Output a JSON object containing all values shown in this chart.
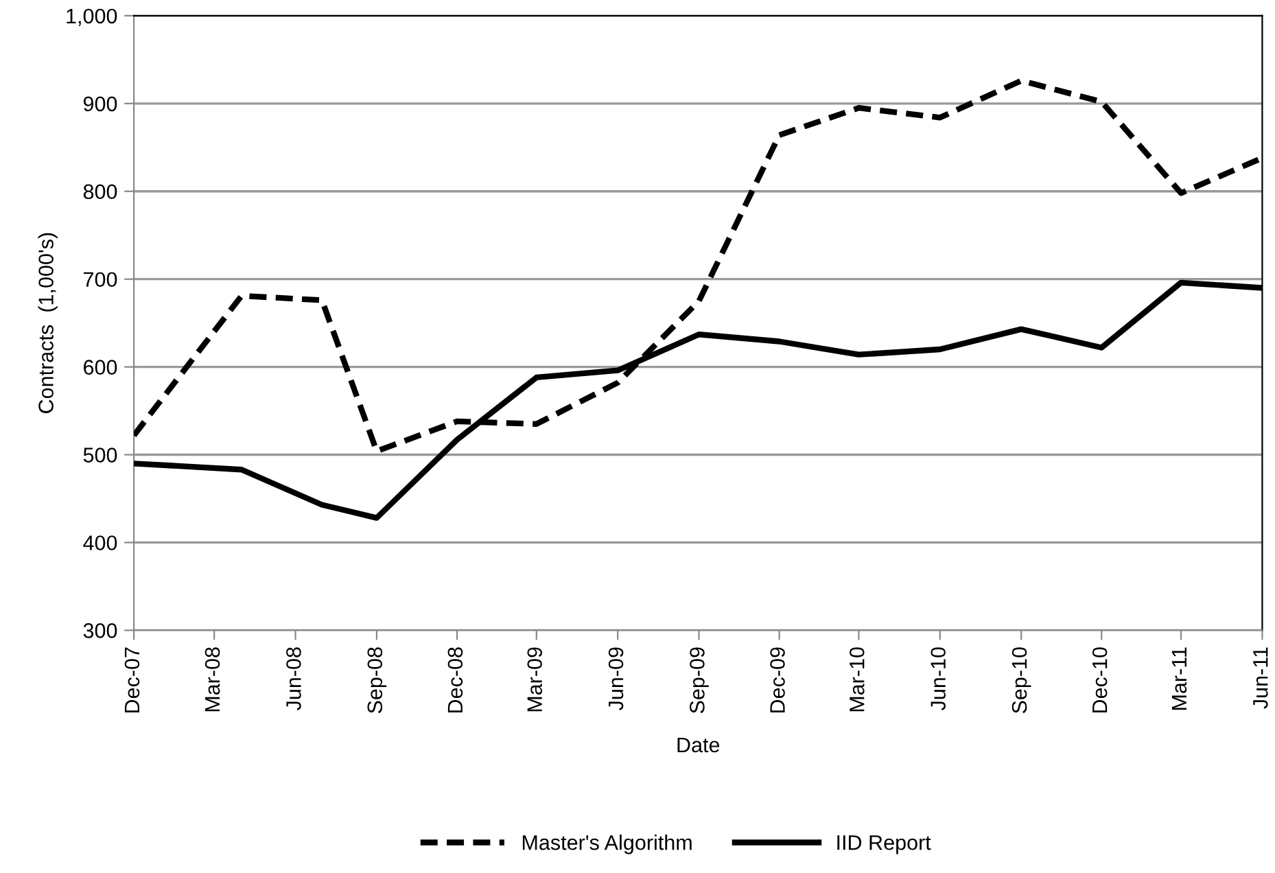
{
  "chart_data": {
    "type": "line",
    "xlabel": "Date",
    "ylabel": "Contracts  (1,000's)",
    "x": [
      "2007-12",
      "2008-04",
      "2008-07",
      "2008-09",
      "2008-12",
      "2009-03",
      "2009-06",
      "2009-09",
      "2009-12",
      "2010-03",
      "2010-06",
      "2010-09",
      "2010-12",
      "2011-03",
      "2011-06"
    ],
    "series": [
      {
        "name": "Master's Algorithm",
        "color": "#000000",
        "line_style": "dashed",
        "values": [
          522,
          681,
          676,
          504,
          538,
          535,
          582,
          675,
          864,
          895,
          884,
          926,
          902,
          798,
          838
        ]
      },
      {
        "name": "IID Report",
        "color": "#000000",
        "line_style": "solid",
        "values": [
          490,
          483,
          443,
          428,
          517,
          588,
          596,
          637,
          629,
          614,
          620,
          643,
          622,
          696,
          690
        ]
      }
    ],
    "xlim": [
      "2007-12",
      "2011-06"
    ],
    "xticks": [
      {
        "value": "2007-12",
        "label": "Dec-07"
      },
      {
        "value": "2008-03",
        "label": "Mar-08"
      },
      {
        "value": "2008-06",
        "label": "Jun-08"
      },
      {
        "value": "2008-09",
        "label": "Sep-08"
      },
      {
        "value": "2008-12",
        "label": "Dec-08"
      },
      {
        "value": "2009-03",
        "label": "Mar-09"
      },
      {
        "value": "2009-06",
        "label": "Jun-09"
      },
      {
        "value": "2009-09",
        "label": "Sep-09"
      },
      {
        "value": "2009-12",
        "label": "Dec-09"
      },
      {
        "value": "2010-03",
        "label": "Mar-10"
      },
      {
        "value": "2010-06",
        "label": "Jun-10"
      },
      {
        "value": "2010-09",
        "label": "Sep-10"
      },
      {
        "value": "2010-12",
        "label": "Dec-10"
      },
      {
        "value": "2011-03",
        "label": "Mar-11"
      },
      {
        "value": "2011-06",
        "label": "Jun-11"
      }
    ],
    "ylim": [
      300,
      1000
    ],
    "yticks": [
      300,
      400,
      500,
      600,
      700,
      800,
      900,
      {
        "value": 1000,
        "label": "1,000"
      }
    ],
    "grid": "y",
    "legend": "bottom",
    "marker": "none"
  }
}
